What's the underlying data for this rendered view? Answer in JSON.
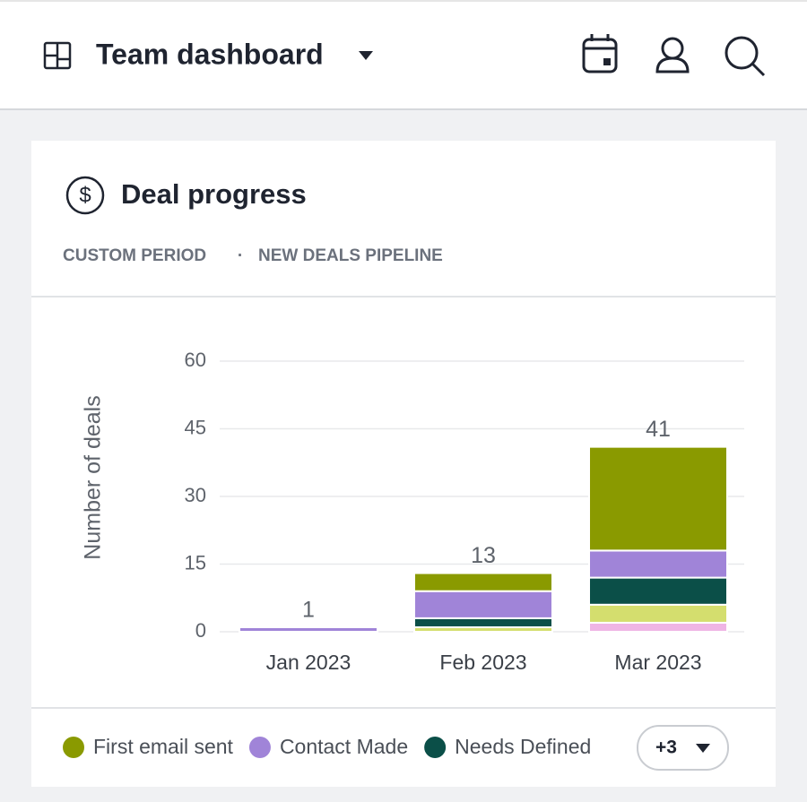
{
  "header": {
    "title": "Team dashboard"
  },
  "card": {
    "title": "Deal progress",
    "period": "CUSTOM PERIOD",
    "separator": "·",
    "pipeline": "NEW DEALS PIPELINE"
  },
  "chart_data": {
    "type": "stacked-bar",
    "ylabel": "Number of deals",
    "categories": [
      "Jan 2023",
      "Feb 2023",
      "Mar 2023"
    ],
    "series": [
      {
        "color": "#efb5e5",
        "values": [
          0,
          0,
          2
        ]
      },
      {
        "color": "#d4de6e",
        "values": [
          0,
          1,
          4
        ]
      },
      {
        "name": "Needs Defined",
        "color": "#0b4f48",
        "values": [
          0,
          2,
          6
        ]
      },
      {
        "name": "Contact Made",
        "color": "#a084d8",
        "values": [
          1,
          6,
          6
        ]
      },
      {
        "name": "First email sent",
        "color": "#8a9a00",
        "values": [
          0,
          4,
          23
        ]
      }
    ],
    "totals": [
      1,
      13,
      41
    ],
    "ylim": [
      0,
      60
    ],
    "yticks": [
      0,
      15,
      30,
      45,
      60
    ],
    "grid": true,
    "legend_more": "+3"
  }
}
